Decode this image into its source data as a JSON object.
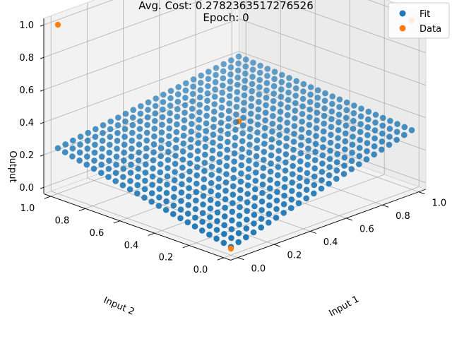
{
  "chart_data": {
    "type": "scatter",
    "projection": "3d",
    "title": "Avg. Cost: 0.2782363517276526",
    "subtitle": "Epoch: 0",
    "xlabel": "Input 1",
    "ylabel": "Input 2",
    "zlabel": "Output",
    "xlim": [
      0,
      1
    ],
    "ylim": [
      0,
      1
    ],
    "zlim": [
      0,
      1
    ],
    "xticks": [
      "0.0",
      "0.2",
      "0.4",
      "0.6",
      "0.8",
      "1.0"
    ],
    "yticks": [
      "0.0",
      "0.2",
      "0.4",
      "0.6",
      "0.8",
      "1.0"
    ],
    "zticks": [
      "0.0",
      "0.2",
      "0.4",
      "0.6",
      "0.8",
      "1.0"
    ],
    "grid": true,
    "legend_position": "top-right",
    "colors": {
      "Fit": "#1f77b4",
      "Data": "#ff7f0e"
    },
    "series": [
      {
        "name": "Fit",
        "kind": "grid-surface",
        "grid_steps": 25,
        "plane": {
          "z00": 0.01,
          "z10": 0.325,
          "z01": 0.24,
          "z11": 0.4
        }
      },
      {
        "name": "Data",
        "points": [
          {
            "x": 0,
            "y": 0,
            "z": 0
          },
          {
            "x": 1,
            "y": 0,
            "z": 1
          },
          {
            "x": 0,
            "y": 1,
            "z": 1
          },
          {
            "x": 1,
            "y": 1,
            "z": 0
          }
        ]
      }
    ]
  }
}
